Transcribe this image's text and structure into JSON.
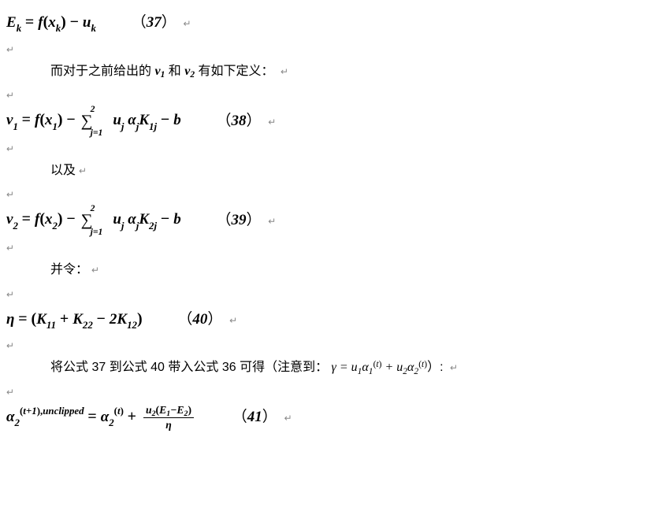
{
  "background_color": "#ffffff",
  "text_color": "#000000",
  "return_mark_color": "#888888",
  "body_font": "Times New Roman / SimSun",
  "eq_fontsize": 19,
  "text_fontsize": 16,
  "eq37": {
    "lhs_var": "E",
    "lhs_sub": "k",
    "rhs_a_func": "f",
    "rhs_a_arg": "x",
    "rhs_a_argsub": "k",
    "rhs_b_var": "u",
    "rhs_b_sub": "k",
    "num_open": "（",
    "num": "37",
    "num_close": "）"
  },
  "text1": {
    "body": "而对于之前给出的 ",
    "v1": "v",
    "v1sub": "1",
    "mid": " 和 ",
    "v2": "v",
    "v2sub": "2",
    "tail": " 有如下定义："
  },
  "eq38": {
    "lhs_var": "v",
    "lhs_sub": "1",
    "func": "f",
    "arg": "x",
    "argsub": "1",
    "sumtop": "2",
    "sumbot": "j=1",
    "t1": "u",
    "t1sub": "j",
    "sp1": " ",
    "t2": "α",
    "t2sub": "j",
    "t3": "K",
    "t3sub": "1j",
    "tail": "b",
    "num_open": "（",
    "num": "38",
    "num_close": "）"
  },
  "text2": "以及",
  "eq39": {
    "lhs_var": "v",
    "lhs_sub": "2",
    "func": "f",
    "arg": "x",
    "argsub": "2",
    "sumtop": "2",
    "sumbot": "j=1",
    "t1": "u",
    "t1sub": "j",
    "sp1": " ",
    "t2": "α",
    "t2sub": "j",
    "t3": "K",
    "t3sub": "2j",
    "tail": "b",
    "num_open": "（",
    "num": "39",
    "num_close": "）"
  },
  "text3": "并令：",
  "eq40": {
    "lhs": "η",
    "k11": "K",
    "k11sub": "11",
    "k22": "K",
    "k22sub": "22",
    "two": "2",
    "k12": "K",
    "k12sub": "12",
    "num_open": "（",
    "num": "40",
    "num_close": "）"
  },
  "text4": {
    "a": "将公式 37 到公式 40 带入公式 36 可得（注意到：  ",
    "g": "γ",
    "eq": " = ",
    "u1": "u",
    "u1s": "1",
    "a1": "α",
    "a1s": "1",
    "a1t_open": "(",
    "a1t": "t",
    "a1t_close": ")",
    "plus": " + ",
    "u2": "u",
    "u2s": "2",
    "a2": "α",
    "a2s": "2",
    "a2t_open": "(",
    "a2t": "t",
    "a2t_close": ")",
    "tail": "）:"
  },
  "eq41": {
    "lhs_var": "α",
    "lhs_sub": "2",
    "lhs_sup_open": "(",
    "lhs_sup_a": "t+1",
    "lhs_sup_close": ")",
    "lhs_sup_comma": ",",
    "lhs_sup_b": "unclipped",
    "rhs_var": "α",
    "rhs_sub": "2",
    "rhs_sup_open": "(",
    "rhs_sup": "t",
    "rhs_sup_close": ")",
    "num_u": "u",
    "num_usub": "2",
    "num_open": "(",
    "num_E1": "E",
    "num_E1s": "1",
    "num_minus": "−",
    "num_E2": "E",
    "num_E2s": "2",
    "num_close": ")",
    "den": "η",
    "eqnum_open": "（",
    "eqnum": "41",
    "eqnum_close": "）"
  }
}
